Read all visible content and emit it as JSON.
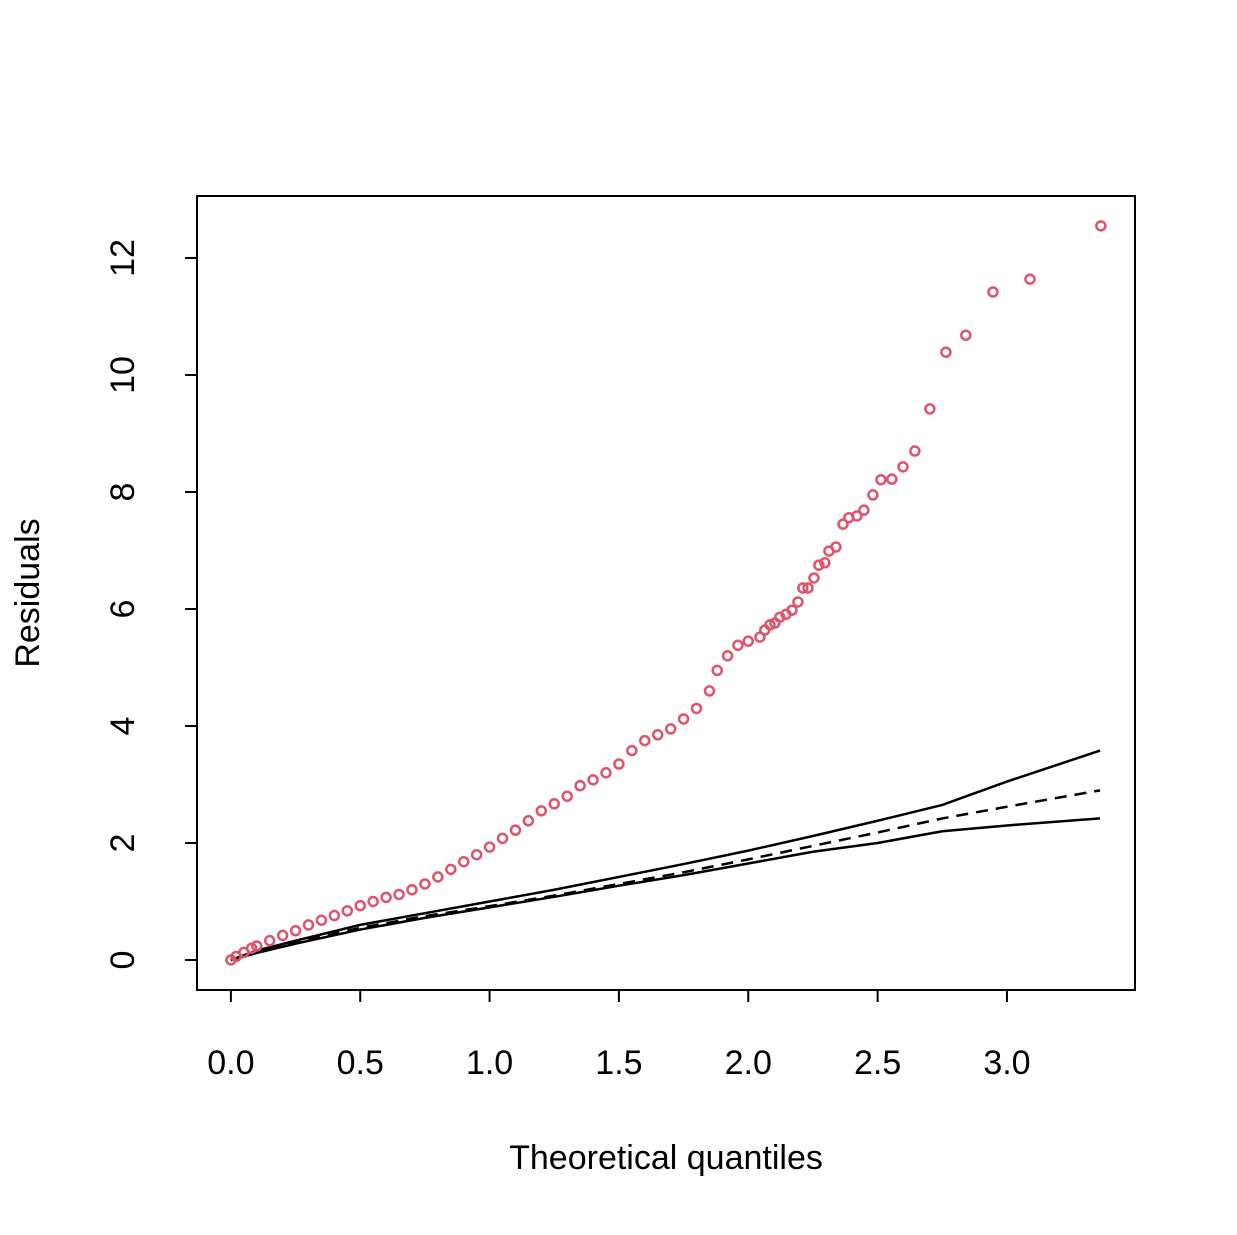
{
  "chart_data": {
    "type": "scatter",
    "x_label": "Theoretical quantiles",
    "y_label": "Residuals",
    "xlim": [
      -0.131,
      3.495
    ],
    "ylim": [
      -0.513,
      13.06
    ],
    "xticks": [
      {
        "value": 0,
        "label": "0.0"
      },
      {
        "value": 0.5,
        "label": "0.5"
      },
      {
        "value": 1,
        "label": "1.0"
      },
      {
        "value": 1.5,
        "label": "1.5"
      },
      {
        "value": 2,
        "label": "2.0"
      },
      {
        "value": 2.5,
        "label": "2.5"
      },
      {
        "value": 3,
        "label": "3.0"
      }
    ],
    "yticks": [
      0,
      2,
      4,
      6,
      8,
      10,
      12
    ],
    "series": [
      {
        "kind": "points",
        "color": "#df536b",
        "x": [
          0,
          0.02,
          0.05,
          0.08,
          0.1,
          0.15,
          0.2,
          0.25,
          0.3,
          0.35,
          0.4,
          0.45,
          0.5,
          0.55,
          0.6,
          0.65,
          0.7,
          0.75,
          0.8,
          0.85,
          0.9,
          0.95,
          1.0,
          1.05,
          1.1,
          1.15,
          1.2,
          1.25,
          1.3,
          1.35,
          1.4,
          1.45,
          1.5,
          1.55,
          1.6,
          1.65,
          1.7,
          1.75,
          1.8,
          1.85,
          1.88,
          1.92,
          1.96,
          2.0,
          2.045,
          2.064,
          2.084,
          2.103,
          2.122,
          2.146,
          2.169,
          2.192,
          2.211,
          2.231,
          2.254,
          2.273,
          2.296,
          2.312,
          2.339,
          2.366,
          2.389,
          2.42,
          2.447,
          2.482,
          2.513,
          2.555,
          2.598,
          2.644,
          2.702,
          2.764,
          2.841,
          2.946,
          3.089,
          3.363
        ],
        "values": [
          0,
          0.06,
          0.13,
          0.2,
          0.24,
          0.33,
          0.42,
          0.5,
          0.6,
          0.68,
          0.76,
          0.84,
          0.93,
          1.0,
          1.07,
          1.12,
          1.2,
          1.3,
          1.42,
          1.55,
          1.68,
          1.8,
          1.93,
          2.08,
          2.22,
          2.38,
          2.55,
          2.67,
          2.8,
          2.98,
          3.08,
          3.2,
          3.35,
          3.58,
          3.75,
          3.85,
          3.95,
          4.12,
          4.3,
          4.6,
          4.95,
          5.2,
          5.38,
          5.45,
          5.52,
          5.64,
          5.73,
          5.76,
          5.86,
          5.91,
          5.98,
          6.12,
          6.36,
          6.36,
          6.53,
          6.75,
          6.79,
          6.99,
          7.06,
          7.45,
          7.56,
          7.59,
          7.69,
          7.95,
          8.21,
          8.22,
          8.43,
          8.7,
          9.42,
          10.39,
          10.68,
          11.42,
          11.64,
          12.55
        ]
      },
      {
        "kind": "line",
        "color": "#000000",
        "dashed": false,
        "x": [
          0,
          0.1,
          0.25,
          0.5,
          0.75,
          1.0,
          1.25,
          1.5,
          1.75,
          2.0,
          2.25,
          2.5,
          2.75,
          3.0,
          3.36
        ],
        "values": [
          0,
          0.16,
          0.33,
          0.6,
          0.8,
          1.0,
          1.2,
          1.42,
          1.64,
          1.87,
          2.12,
          2.38,
          2.65,
          3.05,
          3.58
        ]
      },
      {
        "kind": "line",
        "color": "#000000",
        "dashed": true,
        "x": [
          0,
          0.1,
          0.25,
          0.5,
          0.75,
          1.0,
          1.25,
          1.5,
          1.75,
          2.0,
          2.25,
          2.5,
          2.75,
          3.0,
          3.36
        ],
        "values": [
          0,
          0.13,
          0.3,
          0.55,
          0.75,
          0.92,
          1.1,
          1.3,
          1.5,
          1.72,
          1.95,
          2.18,
          2.42,
          2.62,
          2.9
        ]
      },
      {
        "kind": "line",
        "color": "#000000",
        "dashed": false,
        "x": [
          0,
          0.1,
          0.25,
          0.5,
          0.75,
          1.0,
          1.25,
          1.5,
          1.75,
          2.0,
          2.25,
          2.5,
          2.75,
          3.0,
          3.36
        ],
        "values": [
          0,
          0.12,
          0.28,
          0.52,
          0.72,
          0.9,
          1.08,
          1.27,
          1.45,
          1.65,
          1.85,
          2.0,
          2.2,
          2.3,
          2.42
        ]
      }
    ]
  }
}
